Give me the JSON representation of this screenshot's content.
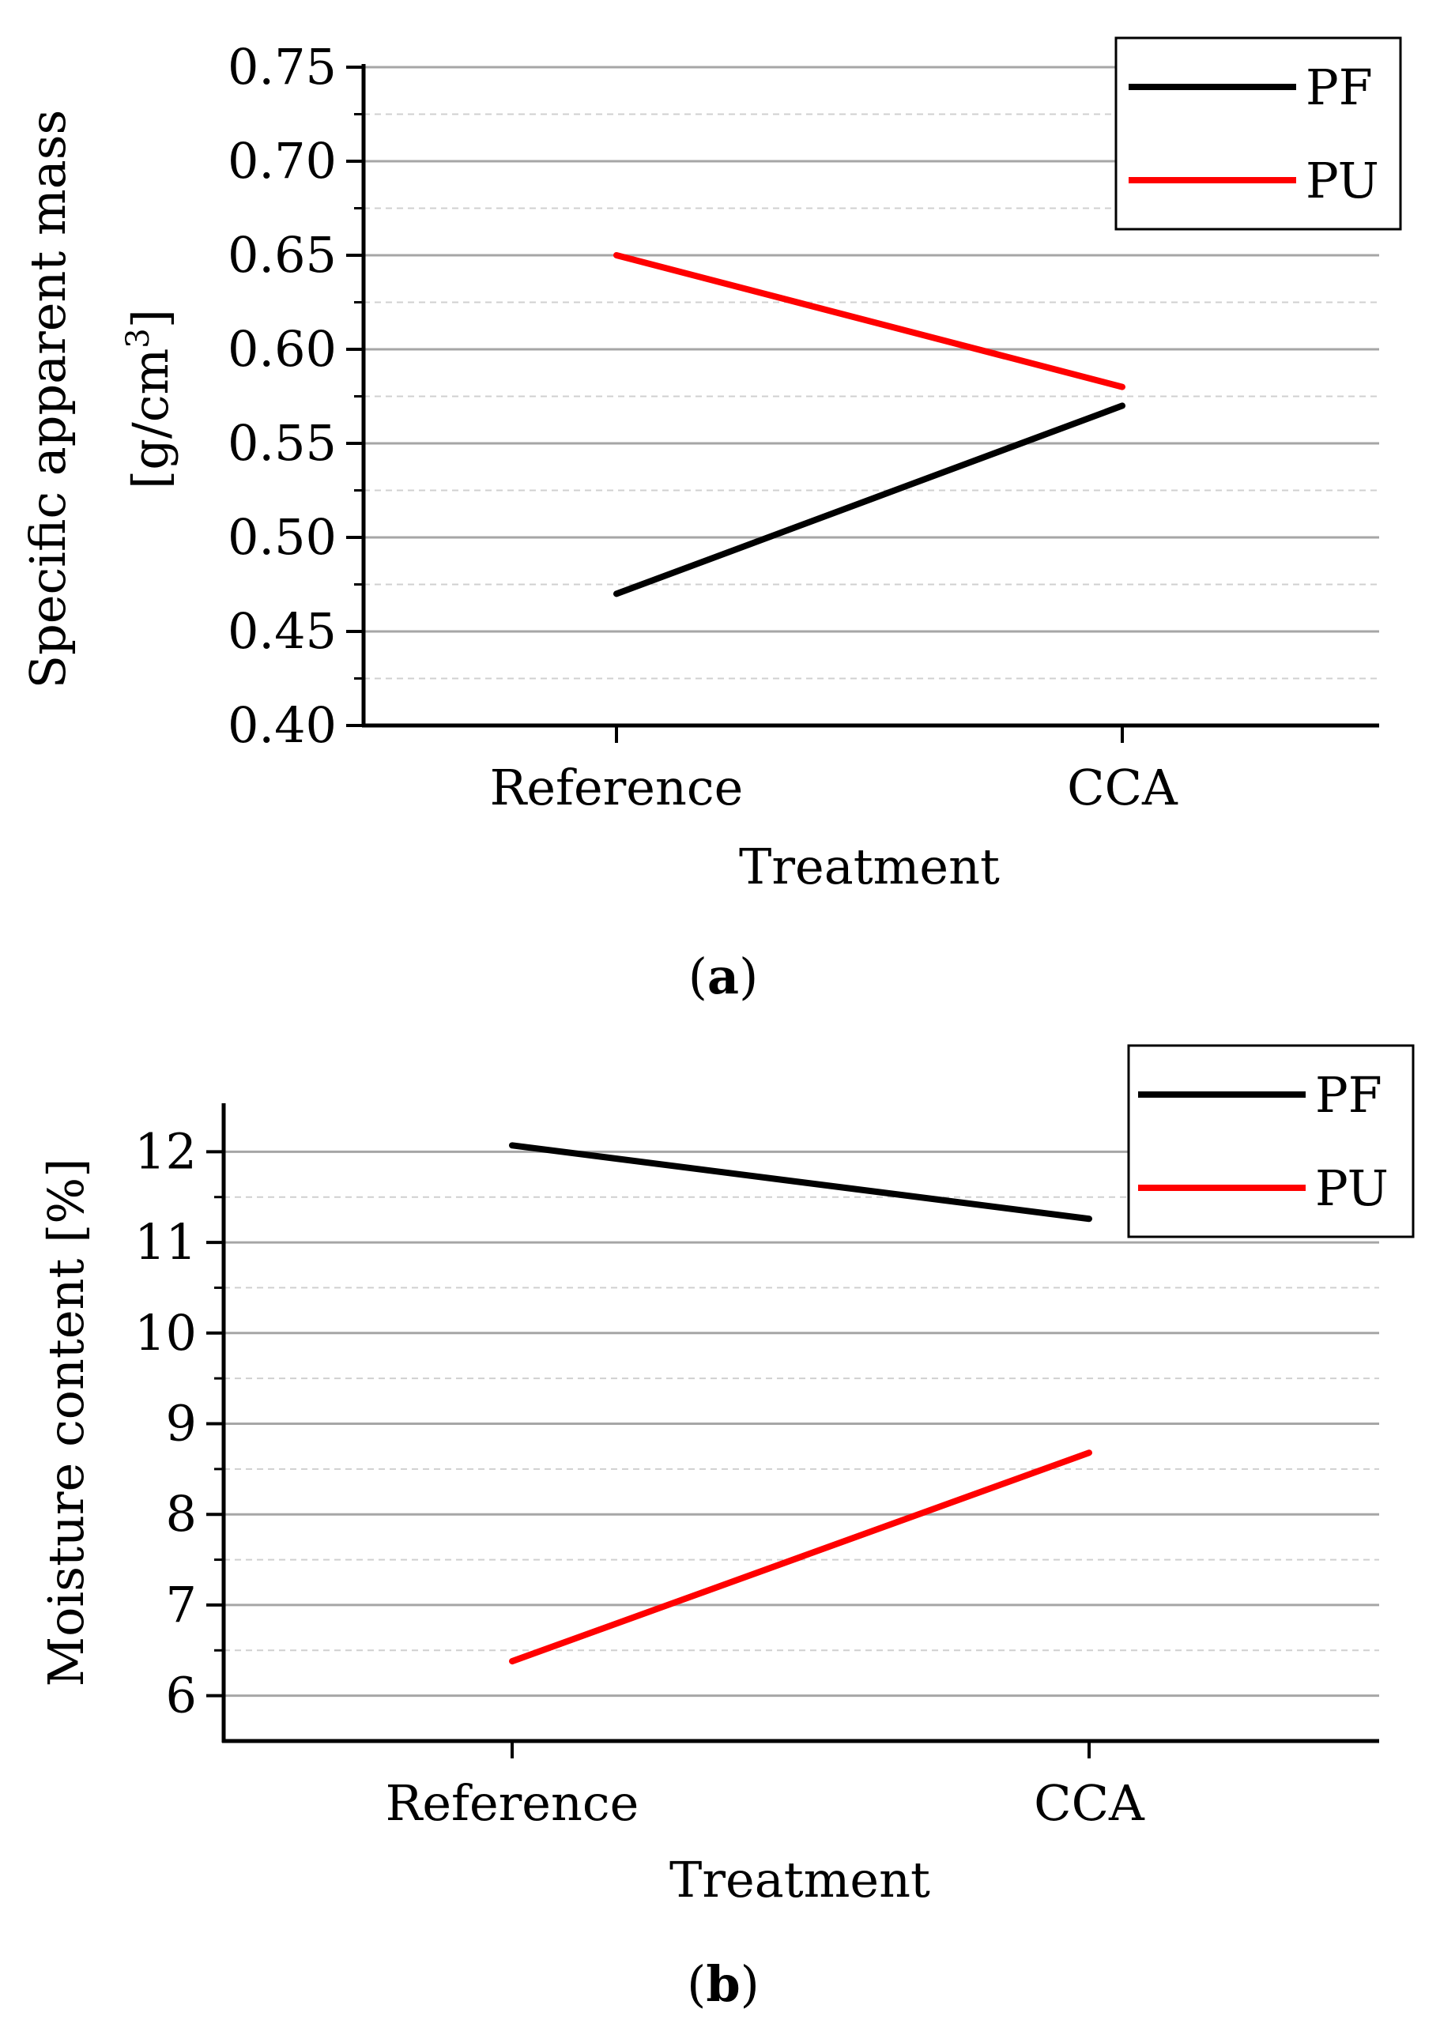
{
  "chart_data": [
    {
      "type": "line",
      "panel_label_open": "(",
      "panel_label": "a",
      "panel_label_close": ")",
      "categories": [
        "Reference",
        "CCA"
      ],
      "series": [
        {
          "name": "PF",
          "color": "#000000",
          "values": [
            0.47,
            0.57
          ]
        },
        {
          "name": "PU",
          "color": "#ff0000",
          "values": [
            0.65,
            0.58
          ]
        }
      ],
      "xlabel": "Treatment",
      "ylabel_line1": "Specific apparent mass",
      "ylabel_line2": "[g/cm",
      "ylabel_sup": "3",
      "ylabel_close": "]",
      "ylim": [
        0.4,
        0.75
      ],
      "yticks": [
        0.4,
        0.45,
        0.5,
        0.55,
        0.6,
        0.65,
        0.7,
        0.75
      ],
      "ytick_labels": [
        "0.40",
        "0.45",
        "0.50",
        "0.55",
        "0.60",
        "0.65",
        "0.70",
        "0.75"
      ],
      "minor_step": 0.025,
      "grid": true,
      "legend": "top-right"
    },
    {
      "type": "line",
      "panel_label_open": "(",
      "panel_label": "b",
      "panel_label_close": ")",
      "categories": [
        "Reference",
        "CCA"
      ],
      "series": [
        {
          "name": "PF",
          "color": "#000000",
          "values": [
            12.07,
            11.26
          ]
        },
        {
          "name": "PU",
          "color": "#ff0000",
          "values": [
            6.38,
            8.68
          ]
        }
      ],
      "xlabel": "Treatment",
      "ylabel": "Moisture content [%]",
      "ylim": [
        5.5,
        12.5
      ],
      "yticks": [
        6,
        7,
        8,
        9,
        10,
        11,
        12
      ],
      "ytick_labels": [
        "6",
        "7",
        "8",
        "9",
        "10",
        "11",
        "12"
      ],
      "minor_step": 0.5,
      "grid": true,
      "legend": "top-right"
    }
  ]
}
